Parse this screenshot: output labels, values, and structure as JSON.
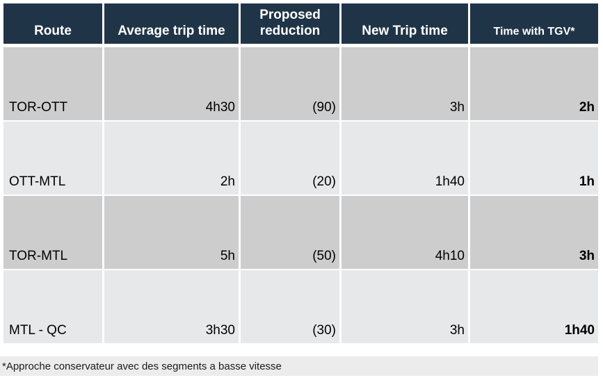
{
  "table": {
    "headers": [
      "Route",
      "Average trip time",
      "Proposed reduction",
      "New Trip time",
      "Time with TGV*"
    ],
    "rows": [
      {
        "route": "TOR-OTT",
        "avg_trip_time": "4h30",
        "proposed_reduction": "(90)",
        "new_trip_time": "3h",
        "time_with_tgv": "2h"
      },
      {
        "route": "OTT-MTL",
        "avg_trip_time": "2h",
        "proposed_reduction": "(20)",
        "new_trip_time": "1h40",
        "time_with_tgv": "1h"
      },
      {
        "route": "TOR-MTL",
        "avg_trip_time": "5h",
        "proposed_reduction": "(50)",
        "new_trip_time": "4h10",
        "time_with_tgv": "3h"
      },
      {
        "route": "MTL - QC",
        "avg_trip_time": "3h30",
        "proposed_reduction": "(30)",
        "new_trip_time": "3h",
        "time_with_tgv": "1h40"
      }
    ]
  },
  "footnote": {
    "text": "*Approche conservateur avec des segments a basse vitesse"
  },
  "colors": {
    "header_bg": "#203447",
    "row_dark": "#CDCDCD",
    "row_light": "#E7E8EA",
    "footnote_bg": "#ECECEC",
    "header_text": "#FFFFFF",
    "body_text": "#000000"
  }
}
